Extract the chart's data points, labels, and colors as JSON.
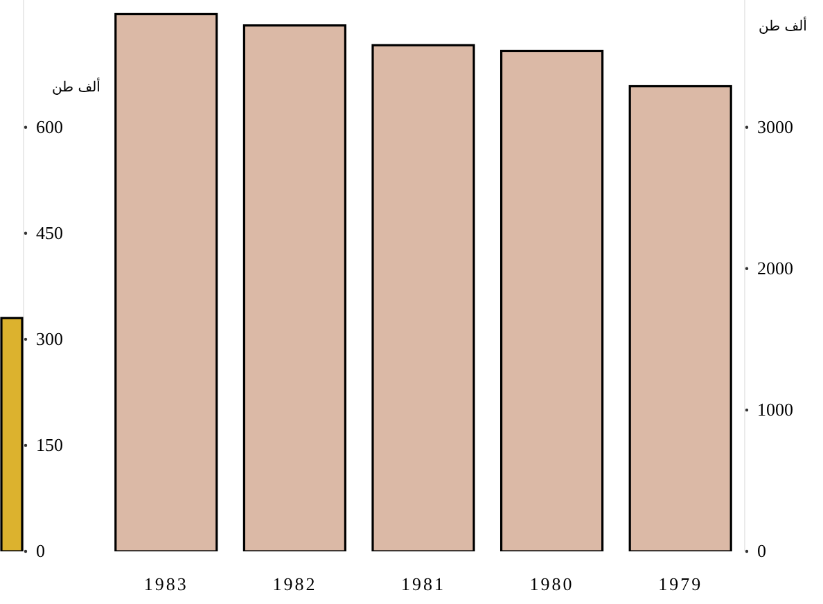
{
  "chart_data": [
    {
      "type": "bar",
      "categories": [
        null
      ],
      "values": [
        330
      ],
      "color": "#dcb22e",
      "ylim": [
        0,
        780
      ],
      "yticks": [
        0,
        150,
        300,
        450,
        600
      ],
      "ylabel": "ألف طن",
      "tick_labels": "y"
    },
    {
      "type": "bar",
      "categories": [
        "1983",
        "1982",
        "1981",
        "1980",
        "1979"
      ],
      "values": [
        3800,
        3720,
        3580,
        3540,
        3290
      ],
      "color": "#dbb9a6",
      "ylim": [
        0,
        3900
      ],
      "yticks": [
        0,
        1000,
        2000,
        3000
      ],
      "ylabel": "ألف طن"
    }
  ]
}
